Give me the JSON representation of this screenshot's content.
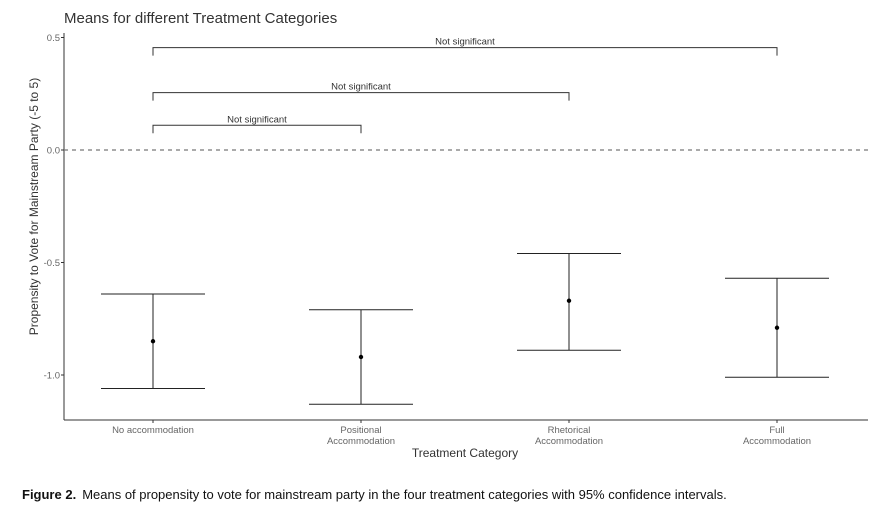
{
  "chart_data": {
    "type": "scatter",
    "title": "Means for different Treatment Categories",
    "xlabel": "Treatment Category",
    "ylabel": "Propensity to Vote for Mainstream Party (-5 to 5)",
    "ylim": [
      -1.2,
      0.52
    ],
    "yticks": [
      {
        "value": 0.5,
        "label": "0.5"
      },
      {
        "value": 0.0,
        "label": "0.0"
      },
      {
        "value": -0.5,
        "label": "-0.5"
      },
      {
        "value": -1.0,
        "label": "-1.0"
      }
    ],
    "categories": [
      [
        "No accommodation"
      ],
      [
        "Positional",
        "Accommodation"
      ],
      [
        "Rhetorical",
        "Accommodation"
      ],
      [
        "Full",
        "Accommodation"
      ]
    ],
    "means": [
      -0.85,
      -0.92,
      -0.67,
      -0.79
    ],
    "ci_lower": [
      -1.06,
      -1.13,
      -0.89,
      -1.01
    ],
    "ci_upper": [
      -0.64,
      -0.71,
      -0.46,
      -0.57
    ],
    "reference_line": 0.0,
    "grid": false,
    "significance_brackets": [
      {
        "from": 0,
        "to": 1,
        "y": 0.11,
        "label": "Not significant"
      },
      {
        "from": 0,
        "to": 2,
        "y": 0.255,
        "label": "Not significant"
      },
      {
        "from": 0,
        "to": 3,
        "y": 0.455,
        "label": "Not significant"
      }
    ]
  },
  "caption": {
    "label": "Figure 2.",
    "text": "Means of propensity to vote for mainstream party in the four treatment categories with 95% confidence intervals."
  }
}
